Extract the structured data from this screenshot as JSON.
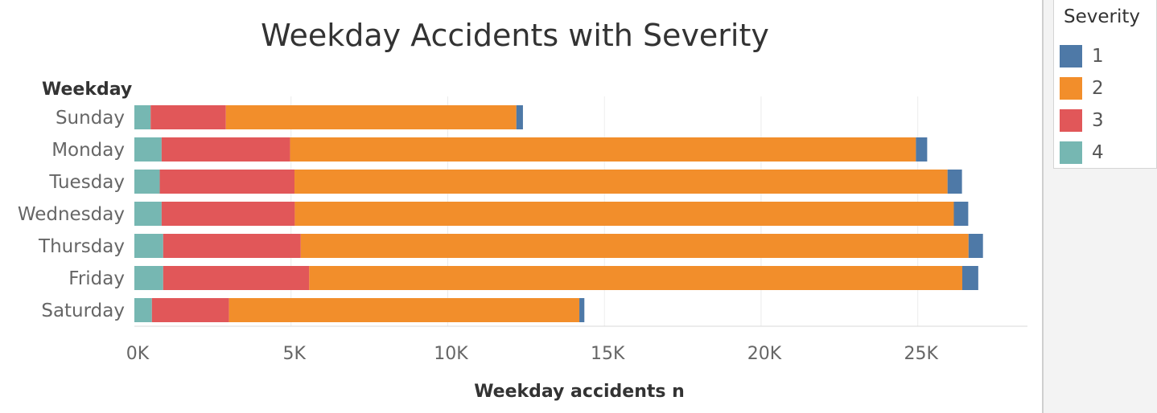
{
  "chart_data": {
    "type": "bar",
    "orientation": "horizontal",
    "stacked": true,
    "title": "Weekday Accidents with Severity",
    "row_header": "Weekday",
    "xlabel": "Weekday accidents n",
    "categories": [
      "Sunday",
      "Monday",
      "Tuesday",
      "Wednesday",
      "Thursday",
      "Friday",
      "Saturday"
    ],
    "series": [
      {
        "name": "4",
        "color": "#76b7b2",
        "values": [
          520,
          870,
          810,
          870,
          920,
          920,
          560
        ]
      },
      {
        "name": "3",
        "color": "#e15759",
        "values": [
          2400,
          4100,
          4300,
          4250,
          4390,
          4660,
          2460
        ]
      },
      {
        "name": "2",
        "color": "#f28e2b",
        "values": [
          9270,
          19970,
          20840,
          21030,
          21310,
          20840,
          11180
        ]
      },
      {
        "name": "1",
        "color": "#4e79a7",
        "values": [
          210,
          360,
          460,
          460,
          460,
          510,
          160
        ]
      }
    ],
    "xticks": [
      0,
      5000,
      10000,
      15000,
      20000,
      25000
    ],
    "xtick_labels": [
      "0K",
      "5K",
      "10K",
      "15K",
      "20K",
      "25K"
    ],
    "xlim": [
      0,
      28500
    ],
    "grid": true,
    "legend": {
      "title": "Severity",
      "position": "right",
      "order": [
        "1",
        "2",
        "3",
        "4"
      ]
    }
  }
}
